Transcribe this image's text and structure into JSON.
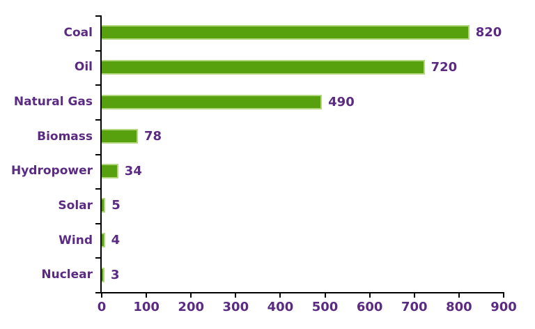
{
  "chart_data": {
    "type": "bar",
    "orientation": "horizontal",
    "title": "",
    "xlabel": "",
    "ylabel": "",
    "categories": [
      "Coal",
      "Oil",
      "Natural Gas",
      "Biomass",
      "Hydropower",
      "Solar",
      "Wind",
      "Nuclear"
    ],
    "values": [
      820,
      720,
      490,
      78,
      34,
      5,
      4,
      3
    ],
    "data_labels": [
      "820",
      "720",
      "490",
      "78",
      "34",
      "5",
      "4",
      "3"
    ],
    "xlim": [
      0,
      900
    ],
    "xticks": [
      "0",
      "100",
      "200",
      "300",
      "400",
      "500",
      "600",
      "700",
      "800",
      "900"
    ],
    "grid": false,
    "legend": false,
    "colors": {
      "bar_fill": "#57a00e",
      "bar_border": "#b2d77e",
      "text_purple": "#5b2b84",
      "axis_black": "#000000",
      "background": "#ffffff"
    }
  }
}
